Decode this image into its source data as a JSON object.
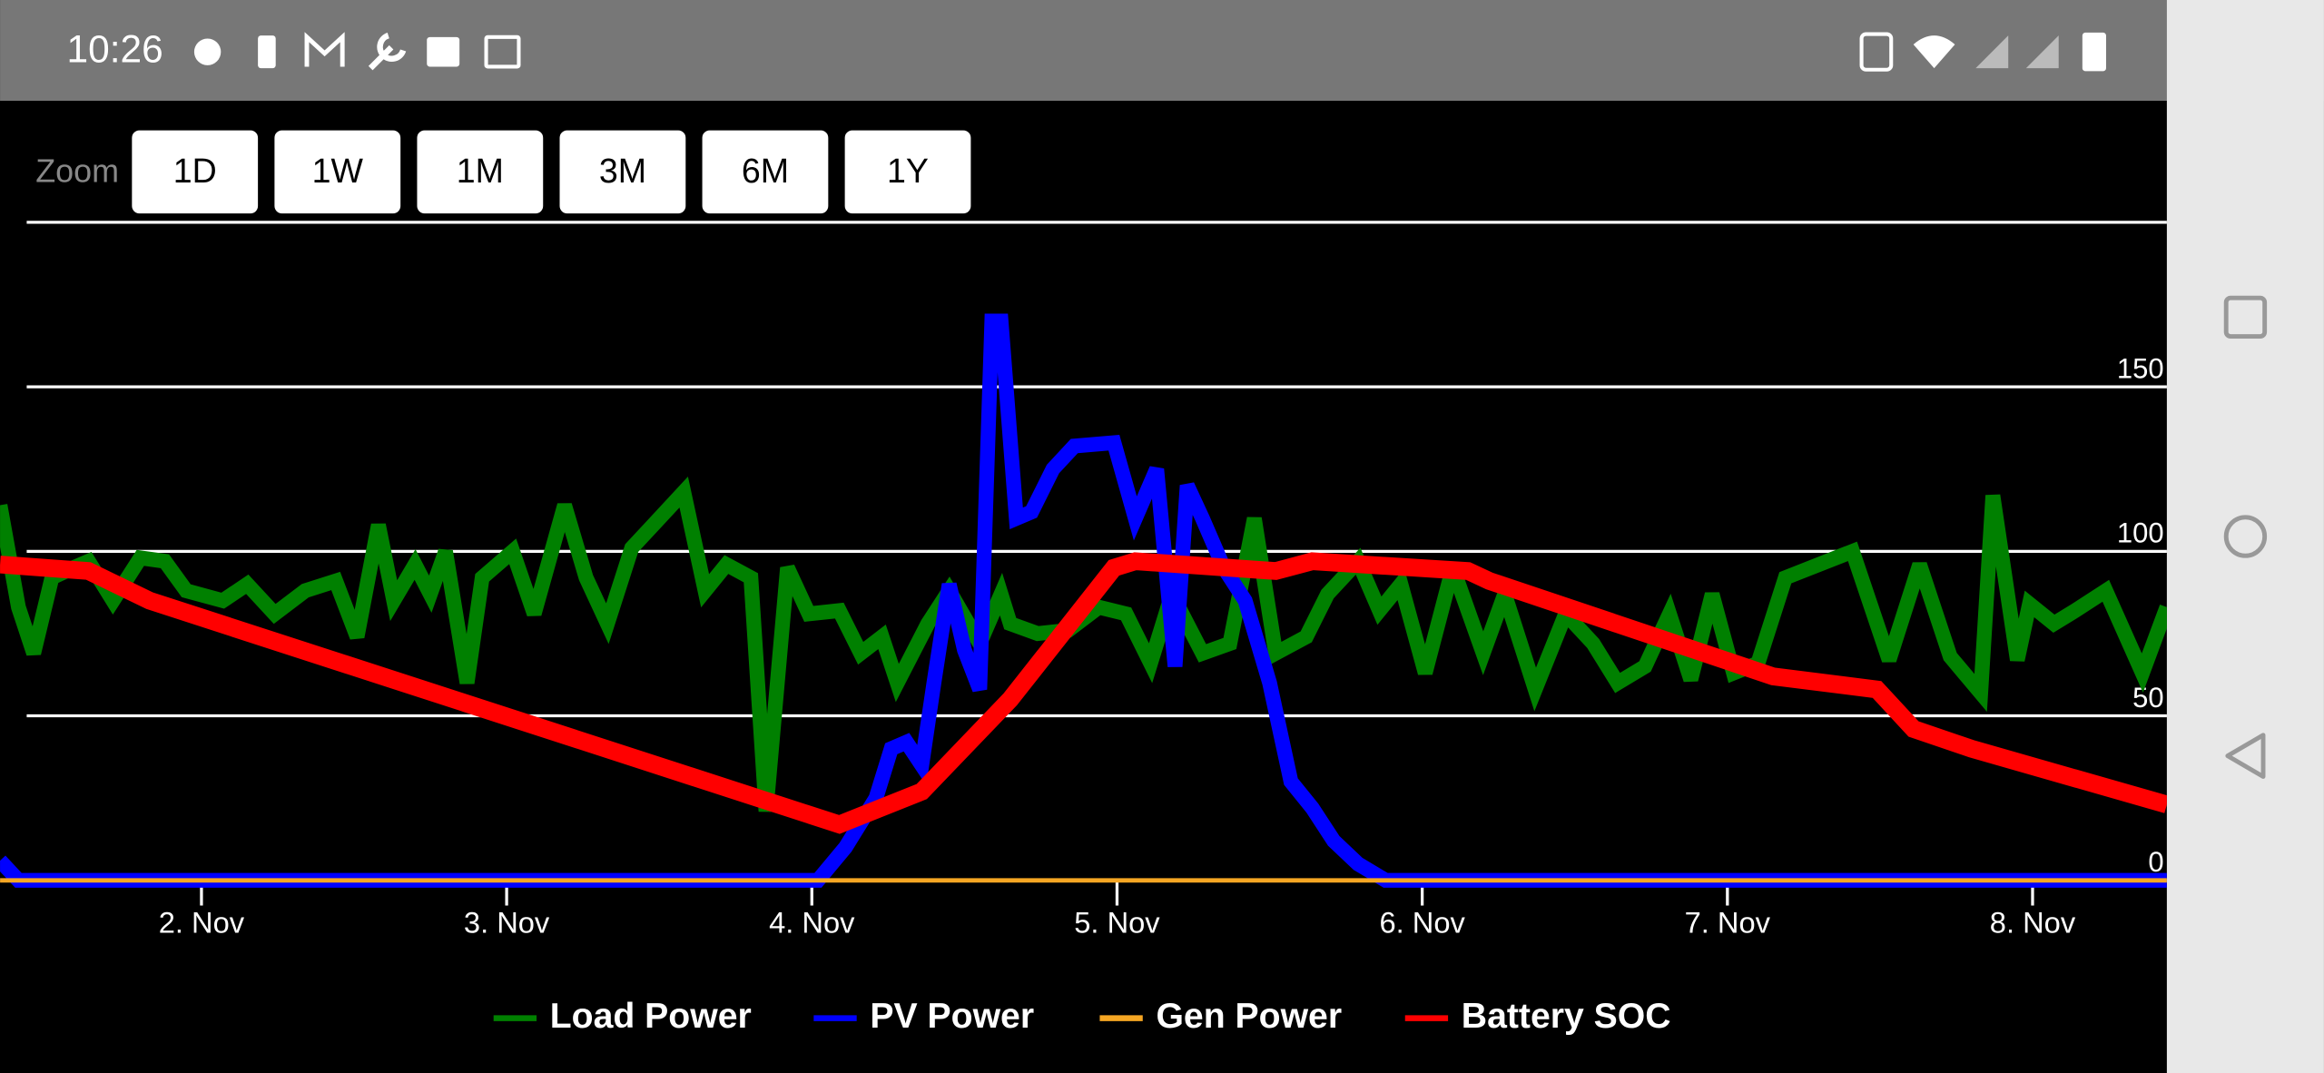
{
  "status_bar": {
    "time": "10:26"
  },
  "zoom": {
    "label": "Zoom",
    "buttons": [
      "1D",
      "1W",
      "1M",
      "3M",
      "6M",
      "1Y"
    ]
  },
  "chart_data": {
    "type": "line",
    "series": [
      {
        "name": "Load Power",
        "color": "#008000",
        "x": [
          1.34,
          1.4,
          1.45,
          1.51,
          1.58,
          1.63,
          1.71,
          1.8,
          1.88,
          1.95,
          2.07,
          2.15,
          2.24,
          2.34,
          2.44,
          2.51,
          2.58,
          2.63,
          2.7,
          2.75,
          2.8,
          2.87,
          2.92,
          3.02,
          3.09,
          3.19,
          3.26,
          3.33,
          3.41,
          3.48,
          3.58,
          3.65,
          3.72,
          3.8,
          3.85,
          3.92,
          3.99,
          4.09,
          4.16,
          4.23,
          4.28,
          4.38,
          4.45,
          4.55,
          4.62,
          4.65,
          4.74,
          4.84,
          4.94,
          5.03,
          5.11,
          5.18,
          5.28,
          5.37,
          5.45,
          5.52,
          5.62,
          5.69,
          5.79,
          5.86,
          5.93,
          6.01,
          6.1,
          6.2,
          6.27,
          6.37,
          6.47,
          6.56,
          6.64,
          6.73,
          6.81,
          6.88,
          6.95,
          7.02,
          7.1,
          7.19,
          7.41,
          7.53,
          7.63,
          7.73,
          7.83,
          7.87,
          7.95,
          7.99,
          8.07,
          8.14,
          8.24,
          8.36,
          8.44
        ],
        "values": [
          114,
          83,
          69,
          92,
          95,
          97,
          85,
          98,
          97,
          88,
          85,
          90,
          81,
          88,
          91,
          74,
          108,
          85,
          96,
          87,
          100,
          60,
          92,
          100,
          81,
          114,
          92,
          78,
          101,
          108,
          118,
          88,
          96,
          92,
          21,
          95,
          81,
          82,
          69,
          74,
          60,
          78,
          88,
          72,
          87,
          78,
          75,
          76,
          83,
          81,
          66,
          87,
          69,
          72,
          110,
          69,
          74,
          87,
          97,
          82,
          90,
          63,
          95,
          69,
          87,
          58,
          81,
          72,
          60,
          65,
          81,
          61,
          87,
          63,
          66,
          92,
          100,
          67,
          96,
          68,
          57,
          117,
          67,
          84,
          78,
          82,
          88,
          63,
          83
        ]
      },
      {
        "name": "PV Power",
        "color": "#0000ff",
        "x": [
          1.34,
          1.4,
          4.02,
          4.11,
          4.21,
          4.26,
          4.31,
          4.36,
          4.4,
          4.45,
          4.5,
          4.55,
          4.59,
          4.62,
          4.67,
          4.72,
          4.79,
          4.86,
          4.99,
          5.06,
          5.13,
          5.19,
          5.23,
          5.28,
          5.35,
          5.42,
          5.5,
          5.57,
          5.64,
          5.71,
          5.79,
          5.88,
          8.44
        ],
        "values": [
          6,
          0,
          0,
          10,
          25,
          40,
          42,
          35,
          60,
          90,
          70,
          58,
          170,
          170,
          110,
          112,
          125,
          132,
          133,
          110,
          125,
          65,
          120,
          110,
          95,
          85,
          60,
          30,
          22,
          12,
          5,
          0,
          0
        ]
      },
      {
        "name": "Gen Power",
        "color": "#f5a623",
        "x": [
          1.34,
          8.44
        ],
        "values": [
          0,
          0
        ]
      },
      {
        "name": "Battery SOC",
        "color": "#ff0000",
        "x": [
          1.34,
          1.63,
          1.83,
          4.09,
          4.36,
          4.65,
          4.99,
          5.06,
          5.52,
          5.64,
          6.15,
          6.22,
          7.15,
          7.49,
          7.61,
          7.8,
          8.44
        ],
        "values": [
          96,
          94,
          85,
          17,
          27,
          55,
          95,
          97,
          94,
          97,
          94,
          91,
          62,
          58,
          46,
          40,
          23
        ]
      }
    ],
    "xlim": [
      1.34,
      8.44
    ],
    "xticks": [
      {
        "value": 2,
        "label": "2. Nov"
      },
      {
        "value": 3,
        "label": "3. Nov"
      },
      {
        "value": 4,
        "label": "4. Nov"
      },
      {
        "value": 5,
        "label": "5. Nov"
      },
      {
        "value": 6,
        "label": "6. Nov"
      },
      {
        "value": 7,
        "label": "7. Nov"
      },
      {
        "value": 8,
        "label": "8. Nov"
      }
    ],
    "ylim": [
      0,
      200
    ],
    "yticks": [
      0,
      50,
      100,
      150
    ],
    "grid": true,
    "legend": "bottom"
  }
}
